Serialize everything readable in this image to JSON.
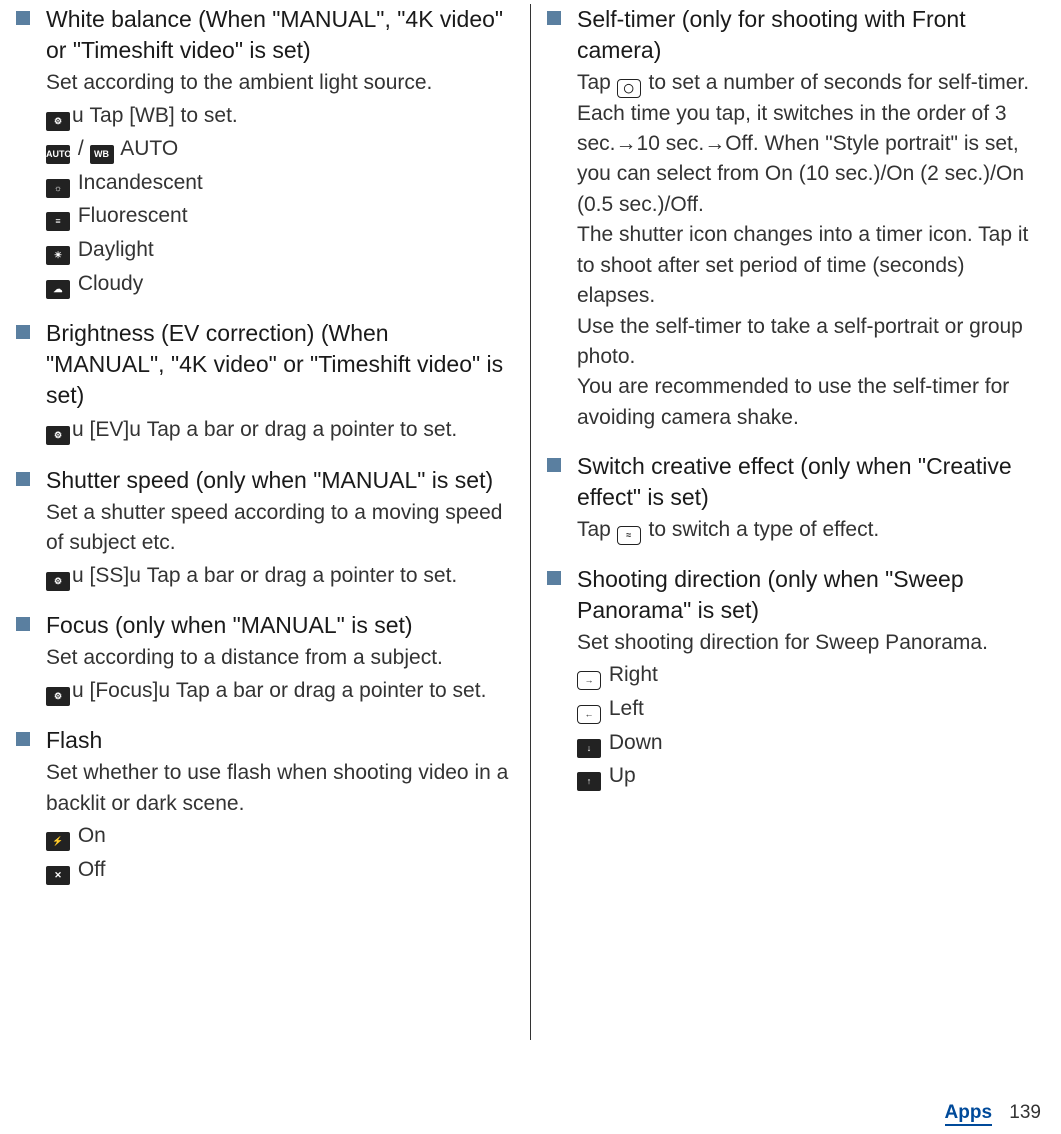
{
  "left": {
    "wb": {
      "title": "White balance (When \"MANUAL\", \"4K video\" or \"Timeshift video\" is set)",
      "desc": "Set according to the ambient light source.",
      "action": "Tap [WB] to set.",
      "opts": {
        "auto": "AUTO",
        "incandescent": "Incandescent",
        "fluorescent": "Fluorescent",
        "daylight": "Daylight",
        "cloudy": "Cloudy"
      }
    },
    "ev": {
      "title": "Brightness (EV correction) (When \"MANUAL\", \"4K video\" or \"Timeshift video\" is set)",
      "action": "[EV]",
      "action2": "Tap a bar or drag a pointer to set."
    },
    "shutter": {
      "title": "Shutter speed (only when \"MANUAL\" is set)",
      "desc": "Set a shutter speed according to a moving speed of subject etc.",
      "action": "[SS]",
      "action2": "Tap a bar or drag a pointer to set."
    },
    "focus": {
      "title": "Focus (only when \"MANUAL\" is set)",
      "desc": "Set according to a distance from a subject.",
      "action": "[Focus]",
      "action2": "Tap a bar or drag a pointer to set."
    },
    "flash": {
      "title": "Flash",
      "desc": "Set whether to use flash when shooting video in a backlit or dark scene.",
      "on": "On",
      "off": "Off"
    }
  },
  "right": {
    "selftimer": {
      "title": "Self-timer (only for shooting with Front camera)",
      "p1a": "Tap ",
      "p1b": " to set a number of seconds for self-timer. Each time you tap, it switches in the order of 3 sec.→10 sec.→Off. When \"Style portrait\" is set, you can select from On (10 sec.)/On (2 sec.)/On (0.5 sec.)/Off.",
      "p2": "The shutter icon changes into a timer icon. Tap it to shoot after set period of time (seconds) elapses.",
      "p3": "Use the self-timer to take a self-portrait or group photo.",
      "p4": "You are recommended to use the self-timer for avoiding camera shake."
    },
    "creative": {
      "title": "Switch creative effect (only when \"Creative effect\" is set)",
      "p1a": "Tap ",
      "p1b": " to switch a type of effect."
    },
    "direction": {
      "title": "Shooting direction (only when \"Sweep Panorama\" is set)",
      "desc": "Set shooting direction for Sweep Panorama.",
      "right": "Right",
      "left": "Left",
      "down": "Down",
      "up": "Up"
    }
  },
  "footer": {
    "section": "Apps",
    "page": "139"
  },
  "style": {
    "bullet_color": "#5a7fa0",
    "link_color": "#004a9a",
    "body_fontsize": 21,
    "title_fontsize": 23
  }
}
